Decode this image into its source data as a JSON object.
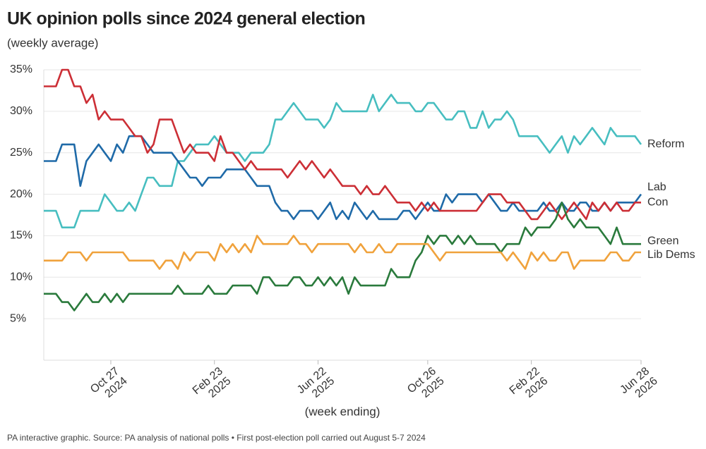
{
  "chart_data": {
    "type": "line",
    "title": "UK opinion polls since 2024 general election",
    "subtitle": "(weekly average)",
    "x_label": "(week ending)",
    "source": "PA interactive graphic. Source: PA analysis of national polls • First post-election poll carried out August 5-7 2024",
    "x": [
      "2024-08-11",
      "2024-08-18",
      "2024-08-25",
      "2024-09-01",
      "2024-09-08",
      "2024-09-15",
      "2024-09-22",
      "2024-09-29",
      "2024-10-06",
      "2024-10-13",
      "2024-10-20",
      "2024-10-27",
      "2024-11-03",
      "2024-11-10",
      "2024-11-17",
      "2024-11-24",
      "2024-12-01",
      "2024-12-08",
      "2024-12-15",
      "2024-12-22",
      "2024-12-29",
      "2025-01-05",
      "2025-01-12",
      "2025-01-19",
      "2025-01-26",
      "2025-02-02",
      "2025-02-09",
      "2025-02-16",
      "2025-02-23",
      "2025-03-02",
      "2025-03-09",
      "2025-03-16",
      "2025-03-23",
      "2025-03-30",
      "2025-04-06",
      "2025-04-13",
      "2025-04-20",
      "2025-04-27",
      "2025-05-04",
      "2025-05-11",
      "2025-05-18",
      "2025-05-25",
      "2025-06-01",
      "2025-06-08",
      "2025-06-15",
      "2025-06-22",
      "2025-06-29",
      "2025-07-06",
      "2025-07-13",
      "2025-07-20",
      "2025-07-27",
      "2025-08-03",
      "2025-08-10",
      "2025-08-17",
      "2025-08-24",
      "2025-08-31",
      "2025-09-07",
      "2025-09-14",
      "2025-09-21",
      "2025-09-28",
      "2025-10-05",
      "2025-10-12",
      "2025-10-19",
      "2025-10-26",
      "2025-11-02",
      "2025-11-09",
      "2025-11-16",
      "2025-11-23",
      "2025-11-30",
      "2025-12-07",
      "2025-12-14",
      "2025-12-21",
      "2025-12-28",
      "2026-01-04",
      "2026-01-11",
      "2026-01-18",
      "2026-01-25",
      "2026-02-01",
      "2026-02-08",
      "2026-02-15",
      "2026-02-22",
      "2026-03-01",
      "2026-03-08",
      "2026-03-15",
      "2026-03-22",
      "2026-03-29",
      "2026-04-05",
      "2026-04-12",
      "2026-04-19",
      "2026-04-26",
      "2026-05-03",
      "2026-05-10",
      "2026-05-17",
      "2026-05-24",
      "2026-05-31",
      "2026-06-07",
      "2026-06-14",
      "2026-06-21",
      "2026-06-28"
    ],
    "xlim": [
      "2024-08-11",
      "2026-06-28"
    ],
    "xticks": [
      {
        "value": "2024-10-27",
        "label": "Oct 27 2024"
      },
      {
        "value": "2025-02-23",
        "label": "Feb 23 2025"
      },
      {
        "value": "2025-06-22",
        "label": "Jun 22 2025"
      },
      {
        "value": "2025-10-26",
        "label": "Oct 26 2025"
      },
      {
        "value": "2026-02-22",
        "label": "Feb 22 2026"
      },
      {
        "value": "2026-06-28",
        "label": "Jun 28 2026"
      }
    ],
    "ylim": [
      0,
      35
    ],
    "yticks": [
      {
        "value": 5,
        "label": "5%"
      },
      {
        "value": 10,
        "label": "10%"
      },
      {
        "value": 15,
        "label": "15%"
      },
      {
        "value": 20,
        "label": "20%"
      },
      {
        "value": 25,
        "label": "25%"
      },
      {
        "value": 30,
        "label": "30%"
      },
      {
        "value": 35,
        "label": "35%"
      }
    ],
    "grid": true,
    "series": [
      {
        "name": "Reform",
        "color": "#47bec0",
        "values": [
          18,
          18,
          18,
          16,
          16,
          16,
          18,
          18,
          18,
          18,
          20,
          19,
          18,
          18,
          19,
          18,
          20,
          22,
          22,
          21,
          21,
          21,
          24,
          24,
          25,
          26,
          26,
          26,
          27,
          26,
          25,
          25,
          25,
          24,
          25,
          25,
          25,
          26,
          29,
          29,
          30,
          31,
          30,
          29,
          29,
          29,
          28,
          29,
          31,
          30,
          30,
          30,
          30,
          30,
          32,
          30,
          31,
          32,
          31,
          31,
          31,
          30,
          30,
          31,
          31,
          30,
          29,
          29,
          30,
          30,
          28,
          28,
          30,
          28,
          29,
          29,
          30,
          29,
          27,
          27,
          27,
          27,
          26,
          25,
          26,
          27,
          25,
          27,
          26,
          27,
          28,
          27,
          26,
          28,
          27,
          27,
          27,
          27,
          26
        ]
      },
      {
        "name": "Lab",
        "color": "#1f6aa8",
        "values": [
          24,
          24,
          24,
          26,
          26,
          26,
          21,
          24,
          25,
          26,
          25,
          24,
          26,
          25,
          27,
          27,
          27,
          26,
          25,
          25,
          25,
          25,
          24,
          23,
          22,
          22,
          21,
          22,
          22,
          22,
          23,
          23,
          23,
          23,
          22,
          21,
          21,
          21,
          19,
          18,
          18,
          17,
          18,
          18,
          18,
          17,
          18,
          19,
          17,
          18,
          17,
          19,
          18,
          17,
          18,
          17,
          17,
          17,
          17,
          18,
          18,
          17,
          18,
          19,
          18,
          18,
          20,
          19,
          20,
          20,
          20,
          20,
          19,
          20,
          19,
          18,
          18,
          19,
          18,
          18,
          18,
          18,
          19,
          18,
          18,
          19,
          18,
          18,
          19,
          19,
          18,
          18,
          19,
          18,
          19,
          19,
          19,
          19,
          20
        ]
      },
      {
        "name": "Con",
        "color": "#cc2f36",
        "values": [
          33,
          33,
          33,
          35,
          35,
          33,
          33,
          31,
          32,
          29,
          30,
          29,
          29,
          29,
          28,
          27,
          27,
          25,
          26,
          29,
          29,
          29,
          27,
          25,
          26,
          25,
          25,
          25,
          24,
          27,
          25,
          25,
          24,
          23,
          24,
          23,
          23,
          23,
          23,
          23,
          22,
          23,
          24,
          23,
          24,
          23,
          22,
          23,
          22,
          21,
          21,
          21,
          20,
          21,
          20,
          20,
          21,
          20,
          19,
          19,
          19,
          18,
          19,
          18,
          19,
          18,
          18,
          18,
          18,
          18,
          18,
          18,
          19,
          20,
          20,
          20,
          19,
          19,
          19,
          18,
          17,
          17,
          18,
          19,
          18,
          17,
          18,
          19,
          18,
          17,
          19,
          18,
          19,
          18,
          19,
          18,
          18,
          19,
          19
        ]
      },
      {
        "name": "Green",
        "color": "#2a7a3c",
        "values": [
          8,
          8,
          8,
          7,
          7,
          6,
          7,
          8,
          7,
          7,
          8,
          7,
          8,
          7,
          8,
          8,
          8,
          8,
          8,
          8,
          8,
          8,
          9,
          8,
          8,
          8,
          8,
          9,
          8,
          8,
          8,
          9,
          9,
          9,
          9,
          8,
          10,
          10,
          9,
          9,
          9,
          10,
          10,
          9,
          9,
          10,
          9,
          10,
          9,
          10,
          8,
          10,
          9,
          9,
          9,
          9,
          9,
          11,
          10,
          10,
          10,
          12,
          13,
          15,
          14,
          15,
          15,
          14,
          15,
          14,
          15,
          14,
          14,
          14,
          14,
          13,
          14,
          14,
          14,
          16,
          15,
          16,
          16,
          16,
          17,
          19,
          17,
          16,
          17,
          16,
          16,
          16,
          15,
          14,
          16,
          14,
          14,
          14,
          14
        ]
      },
      {
        "name": "Lib Dems",
        "color": "#f0a23c",
        "values": [
          12,
          12,
          12,
          12,
          13,
          13,
          13,
          12,
          13,
          13,
          13,
          13,
          13,
          13,
          12,
          12,
          12,
          12,
          12,
          11,
          12,
          12,
          11,
          13,
          12,
          13,
          13,
          13,
          12,
          14,
          13,
          14,
          13,
          14,
          13,
          15,
          14,
          14,
          14,
          14,
          14,
          15,
          14,
          14,
          13,
          14,
          14,
          14,
          14,
          14,
          14,
          13,
          14,
          13,
          13,
          14,
          13,
          13,
          14,
          14,
          14,
          14,
          14,
          14,
          13,
          12,
          13,
          13,
          13,
          13,
          13,
          13,
          13,
          13,
          13,
          13,
          12,
          13,
          12,
          11,
          13,
          12,
          13,
          12,
          12,
          13,
          13,
          11,
          12,
          12,
          12,
          12,
          12,
          13,
          13,
          12,
          12,
          13,
          13
        ]
      }
    ]
  }
}
